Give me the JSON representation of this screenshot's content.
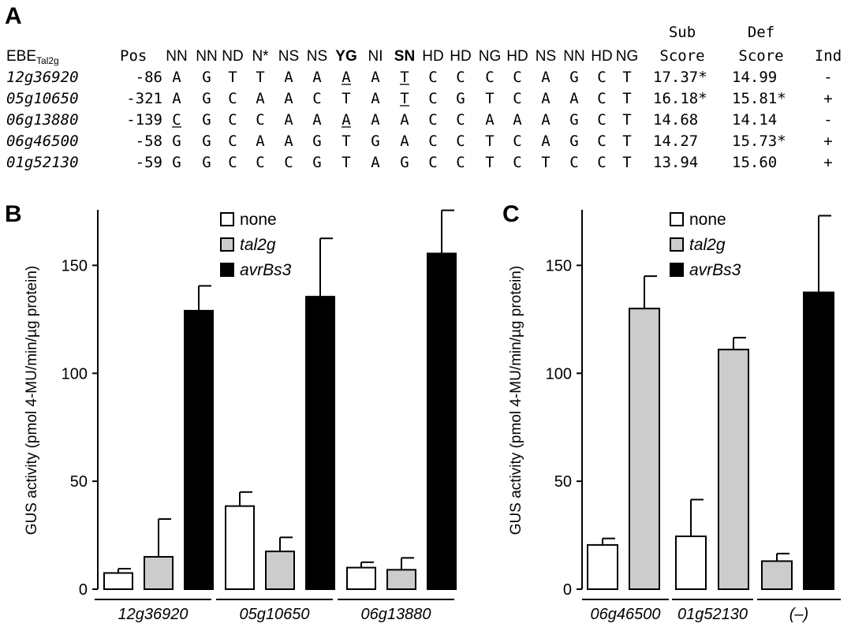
{
  "panels": {
    "a": "A",
    "b": "B",
    "c": "C"
  },
  "table": {
    "ebe_label": "EBE",
    "ebe_subscript": "Tal2g",
    "pos_header": "Pos",
    "rvd_headers": [
      "NN",
      "NN",
      "ND",
      "N*",
      "NS",
      "NS",
      "YG",
      "NI",
      "SN",
      "HD",
      "HD",
      "NG",
      "HD",
      "NS",
      "NN",
      "HD",
      "NG"
    ],
    "rvd_bold": [
      false,
      false,
      false,
      false,
      false,
      false,
      true,
      false,
      true,
      false,
      false,
      false,
      false,
      false,
      false,
      false,
      false
    ],
    "sub_header_1": "Sub",
    "sub_header_2": "Score",
    "def_header_1": "Def",
    "def_header_2": "Score",
    "ind_header": "Ind",
    "rows": [
      {
        "gene": "12g36920",
        "pos": "-86",
        "seq": [
          "A",
          "G",
          "T",
          "T",
          "A",
          "A",
          "A",
          "A",
          "T",
          "C",
          "C",
          "C",
          "C",
          "A",
          "G",
          "C",
          "T"
        ],
        "underline": [
          6,
          8
        ],
        "sub": "17.37*",
        "def": "14.99",
        "ind": "-"
      },
      {
        "gene": "05g10650",
        "pos": "-321",
        "seq": [
          "A",
          "G",
          "C",
          "A",
          "A",
          "C",
          "T",
          "A",
          "T",
          "C",
          "G",
          "T",
          "C",
          "A",
          "A",
          "C",
          "T"
        ],
        "underline": [
          8
        ],
        "sub": "16.18*",
        "def": "15.81*",
        "ind": "+"
      },
      {
        "gene": "06g13880",
        "pos": "-139",
        "seq": [
          "C",
          "G",
          "C",
          "C",
          "A",
          "A",
          "A",
          "A",
          "A",
          "C",
          "C",
          "A",
          "A",
          "A",
          "G",
          "C",
          "T"
        ],
        "underline": [
          0,
          6
        ],
        "sub": "14.68",
        "def": "14.14",
        "ind": "-"
      },
      {
        "gene": "06g46500",
        "pos": "-58",
        "seq": [
          "G",
          "G",
          "C",
          "A",
          "A",
          "G",
          "T",
          "G",
          "A",
          "C",
          "C",
          "T",
          "C",
          "A",
          "G",
          "C",
          "T"
        ],
        "underline": [],
        "sub": "14.27",
        "def": "15.73*",
        "ind": "+"
      },
      {
        "gene": "01g52130",
        "pos": "-59",
        "seq": [
          "G",
          "G",
          "C",
          "C",
          "C",
          "G",
          "T",
          "A",
          "G",
          "C",
          "C",
          "T",
          "C",
          "T",
          "C",
          "C",
          "T"
        ],
        "underline": [],
        "sub": "13.94",
        "def": "15.60",
        "ind": "+"
      }
    ]
  },
  "colors": {
    "none": "#ffffff",
    "tal2g": "#cccccc",
    "avrBs3": "#000000",
    "stroke": "#000000"
  },
  "chart_data": [
    {
      "panel": "B",
      "type": "bar",
      "ylabel": "GUS activity (pmol 4-MU/min/µg protein)",
      "ylim": [
        0,
        175
      ],
      "yticks": [
        0,
        50,
        100,
        150
      ],
      "categories": [
        "12g36920",
        "05g10650",
        "06g13880"
      ],
      "series": [
        {
          "name": "none",
          "key": "none",
          "values": [
            7.5,
            38.5,
            10
          ],
          "errors": [
            2,
            6.5,
            2.5
          ]
        },
        {
          "name": "tal2g",
          "key": "tal2g",
          "values": [
            15,
            17.5,
            9
          ],
          "errors": [
            17.5,
            6.5,
            5.5
          ]
        },
        {
          "name": "avrBs3",
          "key": "avrBs3",
          "values": [
            129,
            135.5,
            155.5
          ],
          "errors": [
            11.5,
            27,
            20
          ]
        }
      ],
      "legend": "top-center"
    },
    {
      "panel": "C",
      "type": "bar",
      "ylabel": "GUS activity (pmol 4-MU/min/µg protein)",
      "ylim": [
        0,
        175
      ],
      "yticks": [
        0,
        50,
        100,
        150
      ],
      "categories": [
        "06g46500",
        "01g52130",
        "(–)"
      ],
      "bars": [
        {
          "category": 0,
          "series": "none",
          "value": 20.5,
          "error": 3
        },
        {
          "category": 0,
          "series": "tal2g",
          "value": 130,
          "error": 15
        },
        {
          "category": 1,
          "series": "none",
          "value": 24.5,
          "error": 17
        },
        {
          "category": 1,
          "series": "tal2g",
          "value": 111,
          "error": 5.5
        },
        {
          "category": 2,
          "series": "tal2g",
          "value": 13,
          "error": 3.5
        },
        {
          "category": 2,
          "series": "avrBs3",
          "value": 137.5,
          "error": 35.5
        }
      ],
      "legend_entries": [
        {
          "name": "none",
          "key": "none"
        },
        {
          "name": "tal2g",
          "key": "tal2g"
        },
        {
          "name": "avrBs3",
          "key": "avrBs3"
        }
      ],
      "legend": "top-center"
    }
  ]
}
